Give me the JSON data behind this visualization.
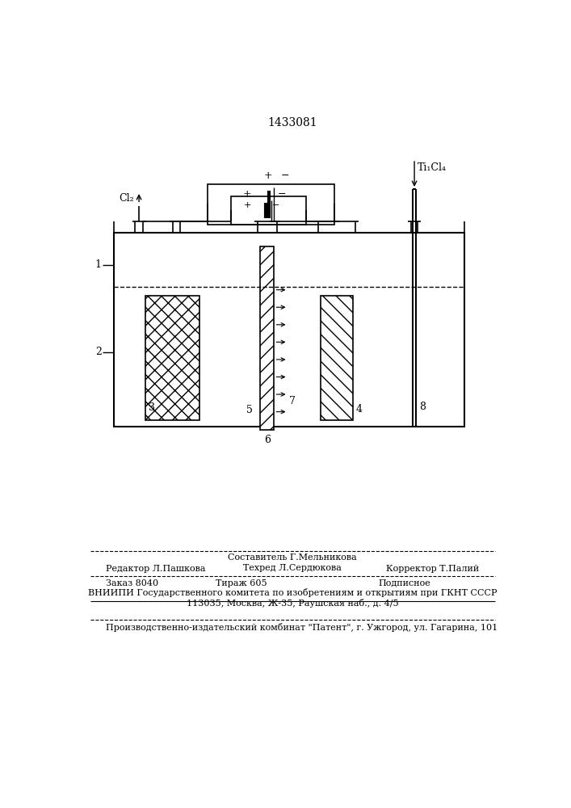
{
  "title": "1433081",
  "bg_color": "#ffffff",
  "line_color": "#000000",
  "fig_width": 7.07,
  "fig_height": 10.0,
  "label_cl2": "Cl₂",
  "label_ticl4": "Ti₁Cl₄",
  "labels": {
    "1": "1",
    "2": "2",
    "3": "3",
    "4": "4",
    "5": "5",
    "6": "6",
    "7": "7",
    "8": "8"
  },
  "plus": "+",
  "minus": "−",
  "footer_left": "Редактор Л.Пашкова",
  "footer_center1": "Составитель Г.Мельникова",
  "footer_center2": "Техред Л.Сердюкова",
  "footer_right": "Корректор Т.Палий",
  "footer_line2a": "Заказ 8040",
  "footer_line2b": "Тираж 605",
  "footer_line2c": "Подписное",
  "footer_line3": "ВНИИПИ Государственного комитета по изобретениям и открытиям при ГКНТ СССР",
  "footer_line4": "113035, Москва, Ж-35, Раушская наб., д. 4/5",
  "footer_line5": "Производственно-издательский комбинат \"Патент\", г. Ужгород, ул. Гагарина, 101"
}
